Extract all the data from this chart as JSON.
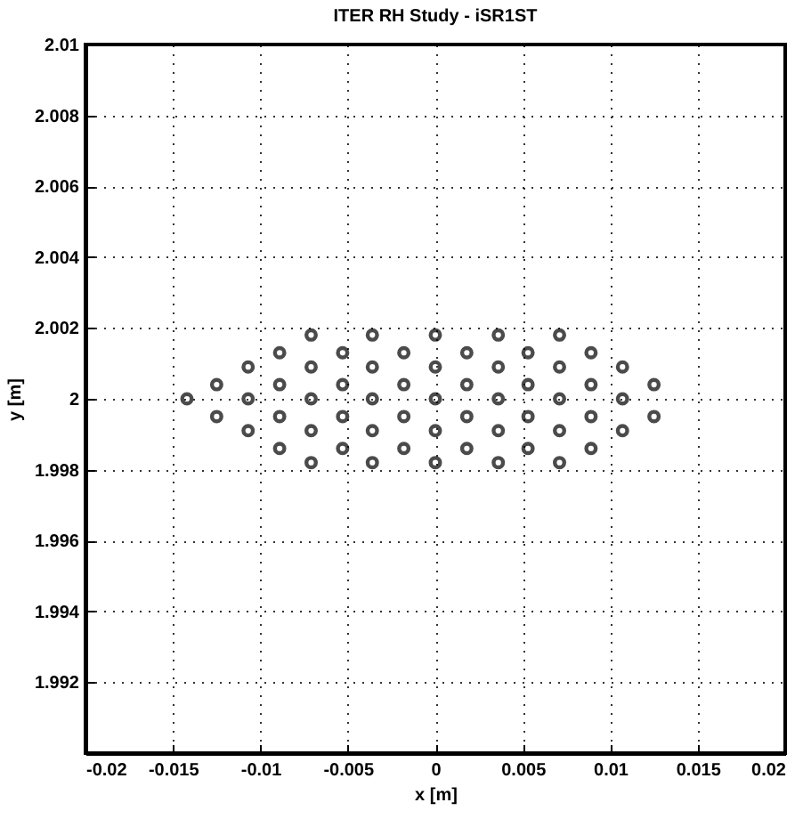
{
  "chart_data": {
    "type": "scatter",
    "title": "ITER RH Study - iSR1ST",
    "xlabel": "x [m]",
    "ylabel": "y [m]",
    "x": [
      -0.0142,
      -0.0125,
      -0.0125,
      -0.0107,
      -0.0107,
      -0.0107,
      -0.0089,
      -0.0089,
      -0.0089,
      -0.0089,
      -0.0071,
      -0.0071,
      -0.0071,
      -0.0071,
      -0.0071,
      -0.0053,
      -0.0053,
      -0.0053,
      -0.0053,
      -0.0036,
      -0.0036,
      -0.0036,
      -0.0036,
      -0.0036,
      -0.0018,
      -0.0018,
      -0.0018,
      -0.0018,
      0,
      0,
      0,
      0,
      0,
      0.0018,
      0.0018,
      0.0018,
      0.0018,
      0.0036,
      0.0036,
      0.0036,
      0.0036,
      0.0036,
      0.0053,
      0.0053,
      0.0053,
      0.0053,
      0.0071,
      0.0071,
      0.0071,
      0.0071,
      0.0071,
      0.0089,
      0.0089,
      0.0089,
      0.0089,
      0.0107,
      0.0107,
      0.0107,
      0.0125,
      0.0125
    ],
    "values": [
      2,
      2.0004,
      1.9995,
      2.0009,
      2,
      1.9991,
      2.0013,
      2.0004,
      1.9995,
      1.9986,
      2.0018,
      2.0009,
      2,
      1.9991,
      1.9982,
      2.0013,
      2.0004,
      1.9995,
      1.9986,
      2.0018,
      2.0009,
      2,
      1.9991,
      1.9982,
      2.0013,
      2.0004,
      1.9995,
      1.9986,
      2.0018,
      2.0009,
      2,
      1.9991,
      1.9982,
      2.0013,
      2.0004,
      1.9995,
      1.9986,
      2.0018,
      2.0009,
      2,
      1.9991,
      1.9982,
      2.0013,
      2.0004,
      1.9995,
      1.9986,
      2.0018,
      2.0009,
      2,
      1.9991,
      1.9982,
      2.0013,
      2.0004,
      1.9995,
      1.9986,
      2.0009,
      2,
      1.9991,
      2.0004,
      1.9995
    ],
    "color": "#000000",
    "marker": "circle",
    "grid": true,
    "xlim": [
      -0.02,
      0.02
    ],
    "xticks": [
      -0.02,
      -0.015,
      -0.01,
      -0.005,
      0,
      0.005,
      0.01,
      0.015,
      0.02
    ],
    "ylim": [
      1.99,
      2.01
    ],
    "yticks": [
      1.992,
      1.994,
      1.996,
      1.998,
      2,
      2.002,
      2.004,
      2.006,
      2.008,
      2.01
    ]
  }
}
